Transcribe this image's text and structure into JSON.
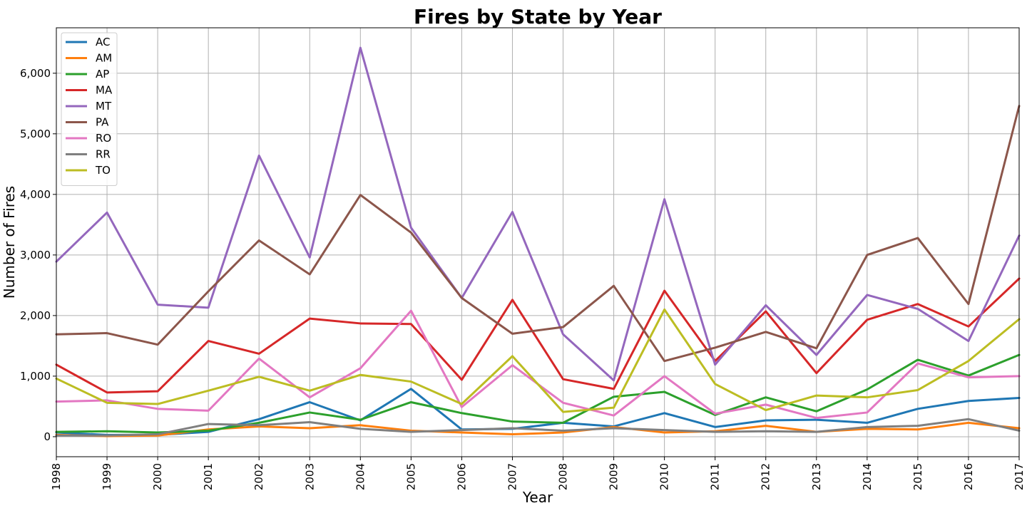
{
  "chart_data": {
    "type": "line",
    "title": "Fires by State by Year",
    "xlabel": "Year",
    "ylabel": "Number of Fires",
    "x": [
      1998,
      1999,
      2000,
      2001,
      2002,
      2003,
      2004,
      2005,
      2006,
      2007,
      2008,
      2009,
      2010,
      2011,
      2012,
      2013,
      2014,
      2015,
      2016,
      2017
    ],
    "xlim": [
      1998,
      2017
    ],
    "ylim": [
      -330,
      6750
    ],
    "yticks": [
      0,
      1000,
      2000,
      3000,
      4000,
      5000,
      6000
    ],
    "ytick_labels": [
      "0",
      "1,000",
      "2,000",
      "3,000",
      "4,000",
      "5,000",
      "6,000"
    ],
    "xtick_labels": [
      "1998",
      "1999",
      "2000",
      "2001",
      "2002",
      "2003",
      "2004",
      "2005",
      "2006",
      "2007",
      "2008",
      "2009",
      "2010",
      "2011",
      "2012",
      "2013",
      "2014",
      "2015",
      "2016",
      "2017"
    ],
    "grid": true,
    "legend_position": "upper-left",
    "series": [
      {
        "name": "AC",
        "color": "#1f77b4",
        "values": [
          70,
          30,
          30,
          80,
          290,
          570,
          270,
          790,
          120,
          130,
          230,
          170,
          390,
          160,
          270,
          280,
          230,
          460,
          590,
          640
        ]
      },
      {
        "name": "AM",
        "color": "#ff7f0e",
        "values": [
          30,
          10,
          20,
          120,
          170,
          140,
          190,
          100,
          70,
          40,
          70,
          160,
          70,
          90,
          180,
          80,
          130,
          120,
          230,
          140
        ]
      },
      {
        "name": "AP",
        "color": "#2ca02c",
        "values": [
          80,
          90,
          70,
          100,
          230,
          400,
          280,
          570,
          390,
          250,
          230,
          660,
          740,
          360,
          650,
          420,
          780,
          1270,
          1010,
          1350
        ]
      },
      {
        "name": "MA",
        "color": "#d62728",
        "values": [
          1190,
          730,
          750,
          1580,
          1370,
          1950,
          1870,
          1860,
          940,
          2260,
          950,
          790,
          2410,
          1250,
          2070,
          1050,
          1930,
          2190,
          1820,
          2610
        ]
      },
      {
        "name": "MT",
        "color": "#9467bd",
        "values": [
          2890,
          3700,
          2180,
          2130,
          4640,
          2960,
          6420,
          3450,
          2290,
          3710,
          1690,
          930,
          3920,
          1190,
          2170,
          1350,
          2340,
          2110,
          1580,
          3320
        ]
      },
      {
        "name": "PA",
        "color": "#8c564b",
        "values": [
          1690,
          1710,
          1520,
          2400,
          3240,
          2680,
          3990,
          3370,
          2290,
          1700,
          1810,
          2490,
          1250,
          1470,
          1730,
          1460,
          3000,
          3280,
          2190,
          5460
        ]
      },
      {
        "name": "RO",
        "color": "#e377c2",
        "values": [
          580,
          600,
          460,
          430,
          1290,
          650,
          1130,
          2080,
          490,
          1180,
          560,
          350,
          1000,
          380,
          530,
          310,
          400,
          1210,
          980,
          1000
        ]
      },
      {
        "name": "RR",
        "color": "#7f7f7f",
        "values": [
          20,
          20,
          40,
          210,
          190,
          240,
          130,
          80,
          110,
          140,
          100,
          140,
          110,
          80,
          90,
          80,
          160,
          180,
          290,
          100
        ]
      },
      {
        "name": "TO",
        "color": "#bcbd22",
        "values": [
          960,
          560,
          540,
          760,
          990,
          760,
          1020,
          910,
          540,
          1330,
          410,
          480,
          2100,
          870,
          440,
          680,
          650,
          770,
          1250,
          1940
        ]
      }
    ]
  }
}
